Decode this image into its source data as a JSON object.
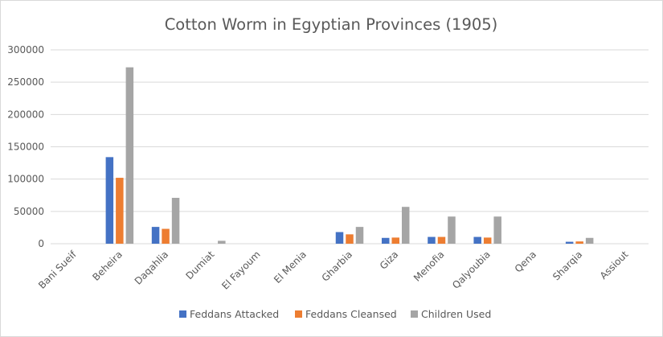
{
  "chart_data": {
    "type": "bar",
    "title": "Cotton Worm in Egyptian Provinces (1905)",
    "xlabel": "",
    "ylabel": "",
    "ylim": [
      0,
      300000
    ],
    "yticks": [
      "0",
      "50000",
      "100000",
      "150000",
      "200000",
      "250000",
      "300000"
    ],
    "grid": true,
    "legend_position": "bottom",
    "categories": [
      "Bani Sueif",
      "Beheira",
      "Daqahlia",
      "Dumiat",
      "El Fayoum",
      "El Menia",
      "Gharbia",
      "Giza",
      "Menofia",
      "Qalyoubia",
      "Qena",
      "Sharqia",
      "Assiout"
    ],
    "series": [
      {
        "name": "Feddans Attacked",
        "color": "#4472c4",
        "values": [
          0,
          134000,
          26000,
          0,
          0,
          0,
          18000,
          9000,
          10500,
          10500,
          0,
          3000,
          0
        ]
      },
      {
        "name": "Feddans Cleansed",
        "color": "#ed7d31",
        "values": [
          0,
          102000,
          23000,
          0,
          0,
          0,
          14500,
          9500,
          10500,
          9500,
          0,
          3500,
          0
        ]
      },
      {
        "name": "Children Used",
        "color": "#a5a5a5",
        "values": [
          0,
          273000,
          71000,
          4500,
          0,
          0,
          26000,
          57000,
          42000,
          42000,
          0,
          9000,
          0
        ]
      }
    ]
  }
}
